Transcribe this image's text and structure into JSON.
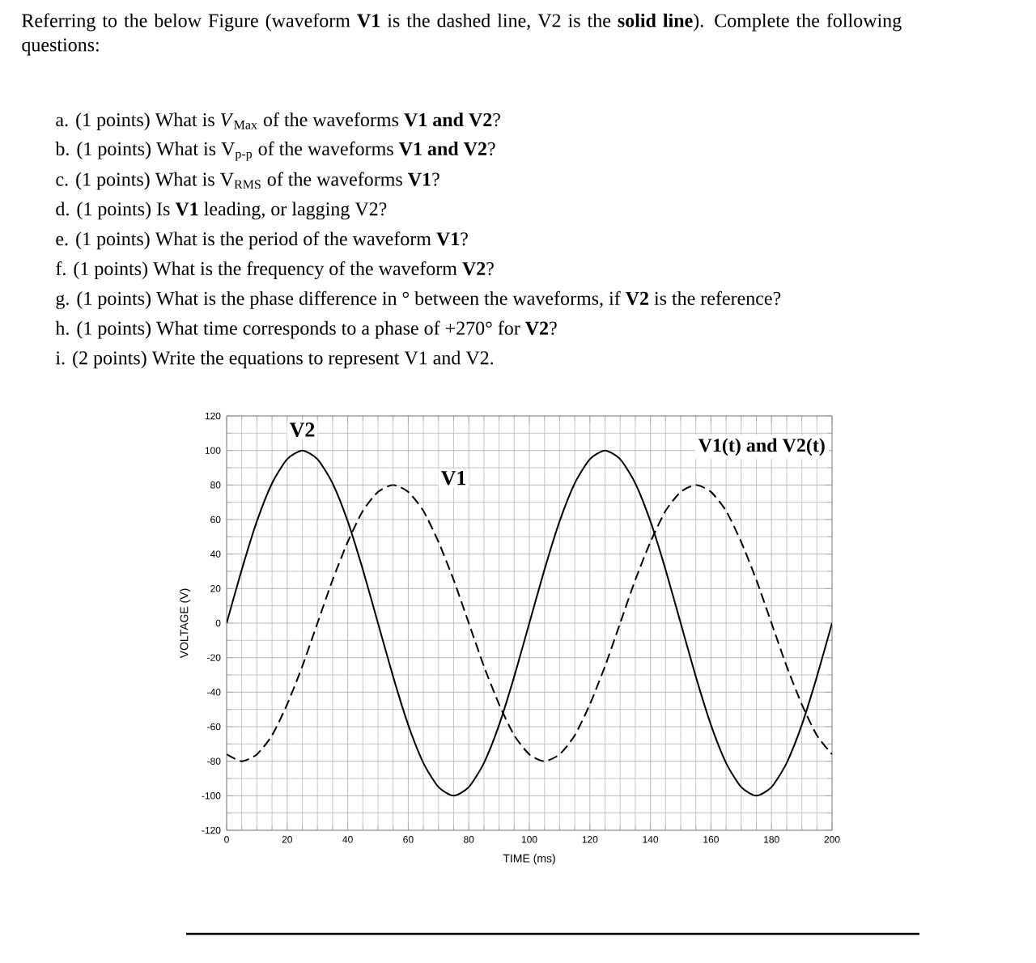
{
  "chart_data": {
    "type": "line",
    "title": "V1(t) and V2(t)",
    "xlabel": "TIME (ms)",
    "ylabel": "VOLTAGE (V)",
    "x": [
      0,
      5,
      10,
      15,
      20,
      25,
      30,
      35,
      40,
      45,
      50,
      55,
      60,
      65,
      70,
      75,
      80,
      85,
      90,
      95,
      100,
      105,
      110,
      115,
      120,
      125,
      130,
      135,
      140,
      145,
      150,
      155,
      160,
      165,
      170,
      175,
      180,
      185,
      190,
      195,
      200
    ],
    "series": [
      {
        "name": "V1",
        "color": "#000000",
        "line_style": "dashed",
        "values": [
          -76,
          -80,
          -76,
          -65,
          -47,
          -25,
          0,
          25,
          47,
          65,
          76,
          80,
          76,
          65,
          47,
          25,
          0,
          -25,
          -47,
          -65,
          -76,
          -80,
          -76,
          -65,
          -47,
          -25,
          0,
          25,
          47,
          65,
          76,
          80,
          76,
          65,
          47,
          25,
          0,
          -25,
          -47,
          -65,
          -76
        ]
      },
      {
        "name": "V2",
        "color": "#000000",
        "line_style": "solid",
        "values": [
          0,
          31,
          59,
          81,
          95,
          100,
          95,
          81,
          59,
          31,
          0,
          -31,
          -59,
          -81,
          -95,
          -100,
          -95,
          -81,
          -59,
          -31,
          0,
          31,
          59,
          81,
          95,
          100,
          95,
          81,
          59,
          31,
          0,
          -31,
          -59,
          -81,
          -95,
          -100,
          -95,
          -81,
          -59,
          -31,
          0
        ]
      }
    ],
    "xlim": [
      0,
      200
    ],
    "ylim": [
      -120,
      120
    ],
    "xticks": [
      0,
      20,
      40,
      60,
      80,
      100,
      120,
      140,
      160,
      180,
      200
    ],
    "yticks": [
      -120,
      -100,
      -80,
      -60,
      -40,
      -20,
      0,
      20,
      40,
      60,
      80,
      100,
      120
    ],
    "grid": true,
    "marker": "none",
    "annotations": [
      "Referring to the below Figure (waveform **V1** is the dashed line, V2 is the **solid line**). Complete the following questions:",
      "a. (1 points) What is *V*$_{Max}$ of the waveforms **V1 and V2**?",
      "b. (1 points) What is V$_{p-p}$ of the waveforms **V1 and V2**?",
      "c. (1 points) What is V$_{RMS}$ of the waveforms **V1**?",
      "d. (1 points) Is **V1** leading, or lagging V2?",
      "e. (1 points) What is the period of the waveform **V1**?",
      "f. (1 points) What is the frequency of the waveform **V2**?",
      "g. (1 points) What is the phase difference in ° between the waveforms, if **V2** is the reference?",
      "h. (1 points) What time corresponds to a phase of +270° for **V2**?",
      "i. (2 points) Write the equations to represent V1 and V2."
    ]
  }
}
